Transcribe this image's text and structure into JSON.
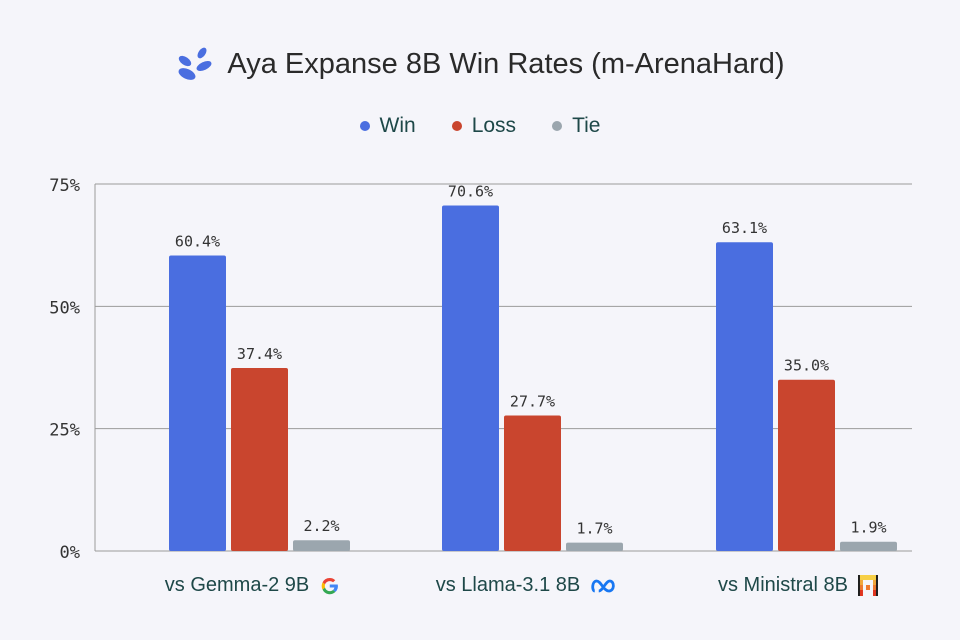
{
  "title": "Aya Expanse 8B Win Rates (m-ArenaHard)",
  "title_icon": "aya-leaf-logo-icon",
  "colors": {
    "win": "#4a6ee0",
    "loss": "#c9452e",
    "tie": "#9ba6ae"
  },
  "chart_data": {
    "type": "bar",
    "title": "Aya Expanse 8B Win Rates (m-ArenaHard)",
    "categories": [
      "vs Gemma-2 9B",
      "vs Llama-3.1 8B",
      "vs Ministral 8B"
    ],
    "category_icons": [
      "google-logo-icon",
      "meta-logo-icon",
      "mistral-logo-icon"
    ],
    "series": [
      {
        "name": "Win",
        "values": [
          60.4,
          70.6,
          63.1
        ],
        "labels": [
          "60.4%",
          "70.6%",
          "63.1%"
        ]
      },
      {
        "name": "Loss",
        "values": [
          37.4,
          27.7,
          35.0
        ],
        "labels": [
          "37.4%",
          "27.7%",
          "35.0%"
        ]
      },
      {
        "name": "Tie",
        "values": [
          2.2,
          1.7,
          1.9
        ],
        "labels": [
          "2.2%",
          "1.7%",
          "1.9%"
        ]
      }
    ],
    "yticks": [
      0,
      25,
      50,
      75
    ],
    "ytick_labels": [
      "0%",
      "25%",
      "50%",
      "75%"
    ],
    "ylim": [
      0,
      75
    ],
    "grid": true,
    "legend_position": "top-center",
    "xlabel": "",
    "ylabel": ""
  }
}
